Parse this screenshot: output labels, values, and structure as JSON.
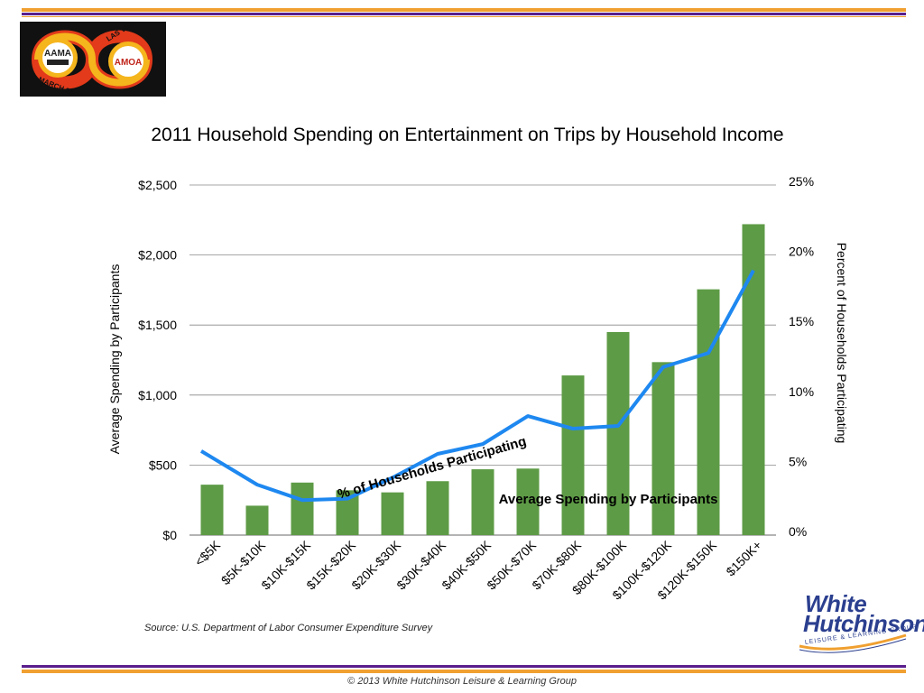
{
  "colors": {
    "bar": "#5e9b46",
    "line": "#1e88f0",
    "stripe_orange": "#f0a030",
    "stripe_purple": "#5a1f8c",
    "grid": "#888888",
    "brand_blue": "#2b3f8f"
  },
  "logo": {
    "icon": "event-badge-logo",
    "left_badge": "AAMA",
    "right_badge": "AMOA",
    "arc_top": "LAS VEGAS, NV",
    "arc_bottom": "MARCH 20-22"
  },
  "chart_data": {
    "type": "bar",
    "title": "2011 Household Spending on Entertainment on Trips by Household Income",
    "categories": [
      "<$5K",
      "$5K-$10K",
      "$10K-$15K",
      "$15K-$20K",
      "$20K-$30K",
      "$30K-$40K",
      "$40K-$50K",
      "$50K-$70K",
      "$70K-$80K",
      "$80K-$100K",
      "$100K-$120K",
      "$120K-$150K",
      "$150K+"
    ],
    "ylabel": "Average Spending by Participants",
    "y2label": "Percent of Households Participating",
    "ylim": [
      0,
      2500
    ],
    "y2lim": [
      0,
      25
    ],
    "yticks": [
      "$0",
      "$500",
      "$1,000",
      "$1,500",
      "$2,000",
      "$2,500"
    ],
    "y2ticks": [
      "0%",
      "5%",
      "10%",
      "15%",
      "20%",
      "25%"
    ],
    "grid": true,
    "series": [
      {
        "name": "Average Spending by Participants",
        "type": "bar",
        "axis": "left",
        "values": [
          360,
          210,
          375,
          320,
          305,
          385,
          470,
          475,
          1140,
          1450,
          1235,
          1755,
          2220
        ]
      },
      {
        "name": "% of Households Participating",
        "type": "line",
        "axis": "right",
        "values": [
          6.0,
          3.6,
          2.5,
          2.6,
          4.1,
          5.8,
          6.5,
          8.5,
          7.6,
          7.8,
          12.0,
          13.0,
          18.9
        ]
      }
    ]
  },
  "source_text": "Source: U.S. Department of Labor Consumer Expenditure Survey",
  "brand": {
    "line1": "White",
    "line2": "Hutchinson",
    "tagline": "LEISURE & LEARNING GROUP"
  },
  "footer_text": "© 2013 White Hutchinson Leisure & Learning Group"
}
